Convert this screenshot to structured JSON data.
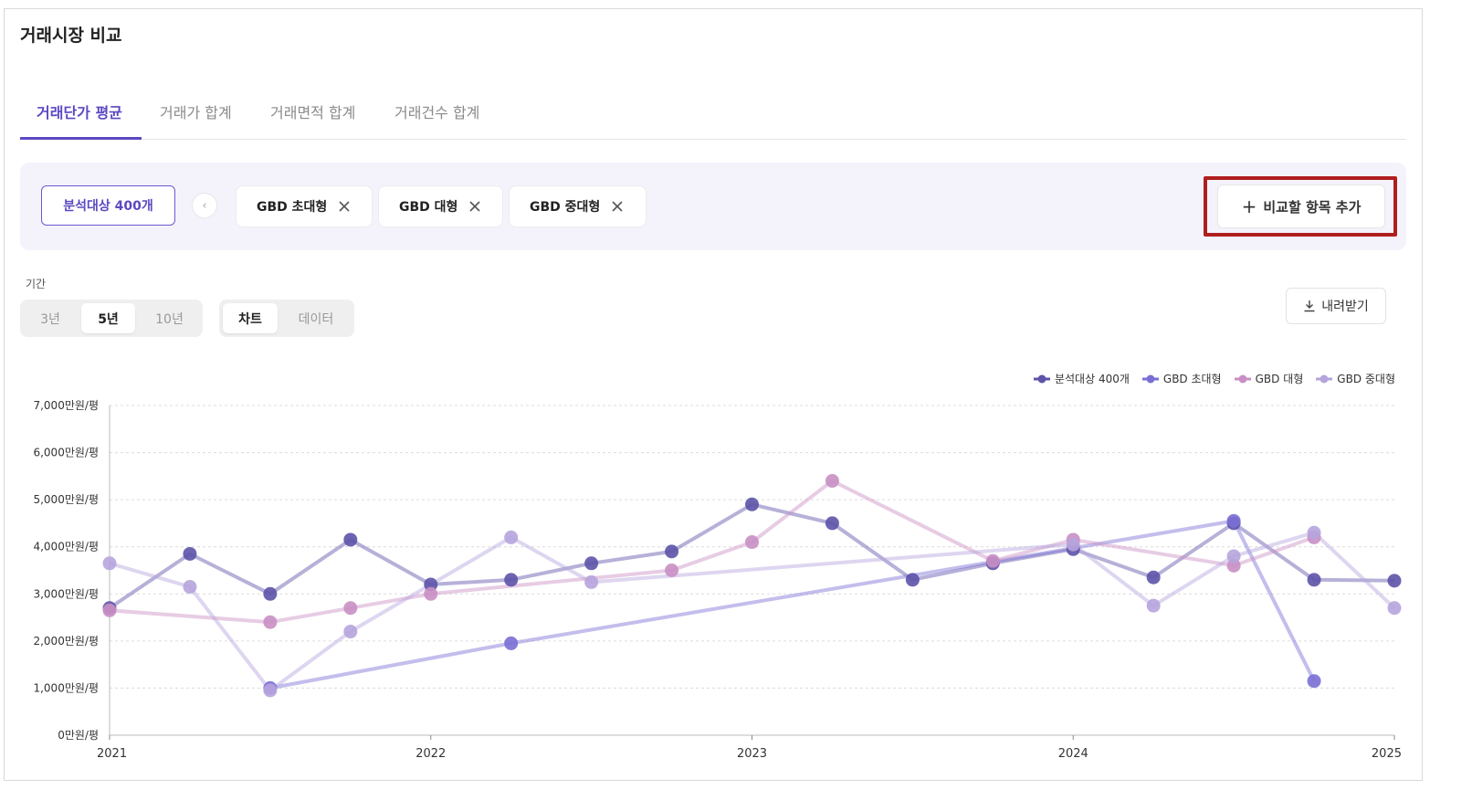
{
  "page": {
    "title": "거래시장 비교",
    "tabs": [
      {
        "label": "거래단가 평균",
        "active": true
      },
      {
        "label": "거래가 합계",
        "active": false
      },
      {
        "label": "거래면적 합계",
        "active": false
      },
      {
        "label": "거래건수 합계",
        "active": false
      }
    ]
  },
  "compare": {
    "base_label": "분석대상 400개",
    "prev_icon": "chevron-left-icon",
    "chips": [
      {
        "label": "GBD 초대형"
      },
      {
        "label": "GBD 대형"
      },
      {
        "label": "GBD 중대형"
      }
    ],
    "remove_icon": "close-icon",
    "add_label": "비교할 항목 추가",
    "add_icon": "plus-icon"
  },
  "period": {
    "label": "기간",
    "options": [
      {
        "label": "3년",
        "selected": false
      },
      {
        "label": "5년",
        "selected": true
      },
      {
        "label": "10년",
        "selected": false
      }
    ]
  },
  "view": {
    "options": [
      {
        "label": "차트",
        "selected": true
      },
      {
        "label": "데이터",
        "selected": false
      }
    ]
  },
  "download": {
    "label": "내려받기",
    "icon": "download-icon"
  },
  "colors": {
    "accent": "#5b49c2",
    "highlight": "#b01e1e",
    "compare_bg": "#f4f3fc"
  },
  "chart_data": {
    "type": "line",
    "x": [
      "2021-01",
      "2021-04",
      "2021-07",
      "2021-10",
      "2022-01",
      "2022-04",
      "2022-07",
      "2022-10",
      "2023-01",
      "2023-04",
      "2023-07",
      "2023-10",
      "2024-01",
      "2024-04",
      "2024-07",
      "2024-10",
      "2025-01"
    ],
    "xticks": [
      "2021",
      "2022",
      "2023",
      "2024",
      "2025"
    ],
    "yticks": [
      "0만원/평",
      "1,000만원/평",
      "2,000만원/평",
      "3,000만원/평",
      "4,000만원/평",
      "5,000만원/평",
      "6,000만원/평",
      "7,000만원/평"
    ],
    "ylim": [
      0,
      7000
    ],
    "grid": true,
    "legend_position": "top-right",
    "series": [
      {
        "name": "분석대상 400개",
        "color": "#5d53a8",
        "opacity": 0.45,
        "values": [
          2700,
          3850,
          3000,
          4150,
          3200,
          3300,
          3650,
          3900,
          4900,
          4500,
          3300,
          3650,
          3950,
          3350,
          4500,
          3300,
          3280
        ]
      },
      {
        "name": "GBD 초대형",
        "color": "#7a6fd4",
        "opacity": 0.45,
        "values": [
          null,
          null,
          1000,
          null,
          null,
          1950,
          null,
          null,
          null,
          null,
          null,
          null,
          null,
          null,
          4550,
          1150,
          null
        ]
      },
      {
        "name": "GBD 대형",
        "color": "#c98fc4",
        "opacity": 0.45,
        "values": [
          2650,
          null,
          2400,
          2700,
          3000,
          null,
          null,
          3500,
          4100,
          5400,
          null,
          3700,
          4150,
          null,
          3600,
          4200,
          null
        ]
      },
      {
        "name": "GBD 중대형",
        "color": "#b6a4dd",
        "opacity": 0.45,
        "values": [
          3650,
          3150,
          950,
          2200,
          null,
          4200,
          3250,
          null,
          null,
          null,
          null,
          null,
          4050,
          2750,
          3800,
          4300,
          2700
        ]
      }
    ]
  }
}
